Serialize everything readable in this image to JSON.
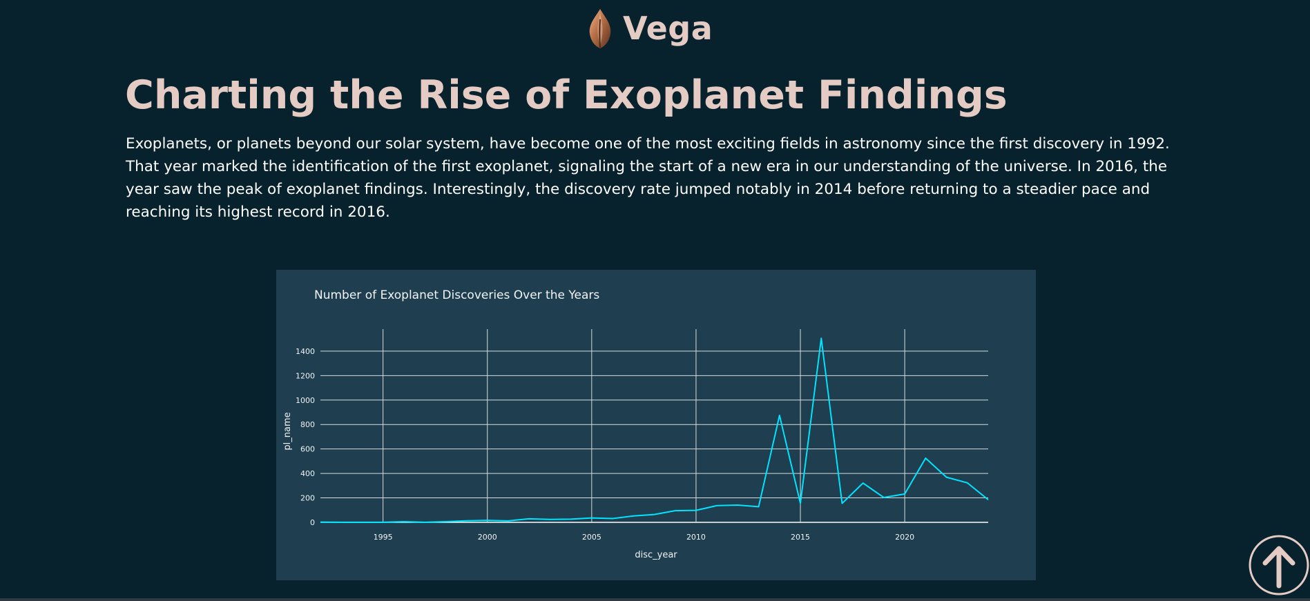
{
  "brand": {
    "name": "Vega",
    "logo_icon": "flame-leaf-icon"
  },
  "header": {
    "title": "Charting the Rise of Exoplanet Findings"
  },
  "intro": {
    "text": "Exoplanets, or planets beyond our solar system, have become one of the most exciting fields in astronomy since the first discovery in 1992. That year marked the identification of the first exoplanet, signaling the start of a new era in our understanding of the universe. In 2016, the year saw the peak of exoplanet findings. Interestingly, the discovery rate jumped notably in 2014 before returning to a steadier pace and reaching its highest record in 2016."
  },
  "colors": {
    "background": "#07212d",
    "card": "#1f3e4f",
    "accent": "#e4cbc3",
    "line": "#00e5ff",
    "grid": "#d7dde0"
  },
  "controls": {
    "scroll_top_icon": "arrow-up-icon"
  },
  "chart_data": {
    "type": "line",
    "title": "Number of Exoplanet Discoveries Over the Years",
    "xlabel": "disc_year",
    "ylabel": "pl_name",
    "xlim": [
      1992,
      2024
    ],
    "ylim": [
      0,
      1580
    ],
    "x_ticks": [
      1995,
      2000,
      2005,
      2010,
      2015,
      2020
    ],
    "y_ticks": [
      0,
      200,
      400,
      600,
      800,
      1000,
      1200,
      1400
    ],
    "grid": true,
    "series": [
      {
        "x": [
          1992,
          1993,
          1994,
          1995,
          1996,
          1997,
          1998,
          1999,
          2000,
          2001,
          2002,
          2003,
          2004,
          2005,
          2006,
          2007,
          2008,
          2009,
          2010,
          2011,
          2012,
          2013,
          2014,
          2015,
          2016,
          2017,
          2018,
          2019,
          2020,
          2021,
          2022,
          2023,
          2024
        ],
        "values": [
          2,
          1,
          1,
          1,
          6,
          1,
          6,
          13,
          16,
          12,
          29,
          24,
          26,
          36,
          31,
          52,
          64,
          95,
          98,
          137,
          141,
          128,
          875,
          156,
          1505,
          155,
          321,
          203,
          232,
          525,
          369,
          323,
          185
        ]
      }
    ]
  }
}
